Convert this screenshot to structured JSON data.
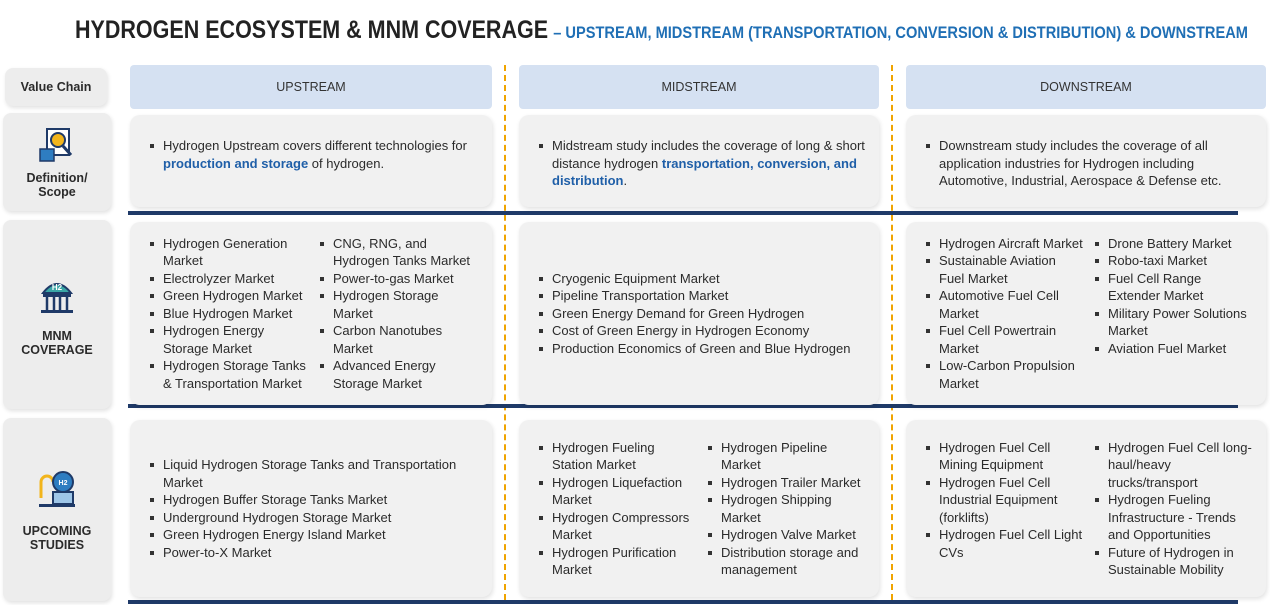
{
  "header": {
    "title": "HYDROGEN ECOSYSTEM & MNM COVERAGE",
    "subtitle": "– UPSTREAM, MIDSTREAM  (TRANSPORTATION, CONVERSION & DISTRIBUTION) & DOWNSTREAM"
  },
  "value_chain_label": "Value Chain",
  "columns": [
    "UPSTREAM",
    "MIDSTREAM",
    "DOWNSTREAM"
  ],
  "rows": [
    {
      "label": [
        "Definition/",
        "Scope"
      ],
      "cells": [
        {
          "parts": [
            "Hydrogen Upstream covers different technologies for ",
            "production and storage",
            " of hydrogen."
          ]
        },
        {
          "parts": [
            "Midstream study includes the coverage of long & short distance hydrogen ",
            "transportation, conversion, and distribution",
            "."
          ]
        },
        {
          "parts": [
            "Downstream study includes the coverage of all application industries for Hydrogen including Automotive, Industrial, Aerospace & Defense etc."
          ]
        }
      ]
    },
    {
      "label": [
        "MNM",
        "COVERAGE"
      ],
      "cells": [
        {
          "items": [
            "Hydrogen Generation Market",
            "Electrolyzer Market",
            "Green Hydrogen Market",
            "Blue Hydrogen Market",
            "Hydrogen Energy Storage Market",
            "Hydrogen Storage Tanks & Transportation Market",
            "CNG, RNG, and Hydrogen Tanks Market",
            "Power-to-gas Market",
            "Hydrogen Storage Market",
            "Carbon Nanotubes Market",
            "Advanced Energy Storage Market"
          ]
        },
        {
          "items": [
            "Cryogenic Equipment Market",
            "Pipeline Transportation Market",
            "Green Energy Demand for Green Hydrogen",
            "Cost of Green Energy in Hydrogen Economy",
            "Production Economics of Green and Blue Hydrogen"
          ]
        },
        {
          "items": [
            "Hydrogen Aircraft Market",
            "Sustainable Aviation Fuel Market",
            "Automotive Fuel Cell Market",
            "Fuel Cell Powertrain Market",
            "Low-Carbon Propulsion Market",
            "Drone Battery Market",
            "Robo-taxi Market",
            "Fuel Cell Range Extender Market",
            "Military Power Solutions Market",
            "Aviation Fuel Market"
          ]
        }
      ]
    },
    {
      "label": [
        "UPCOMING",
        "STUDIES"
      ],
      "cells": [
        {
          "items": [
            "Liquid Hydrogen Storage Tanks and Transportation Market",
            "Hydrogen Buffer Storage Tanks Market",
            "Underground Hydrogen Storage Market",
            "Green Hydrogen Energy Island Market",
            "Power-to-X Market"
          ]
        },
        {
          "items": [
            "Hydrogen Fueling Station Market",
            "Hydrogen Liquefaction Market",
            "Hydrogen Compressors Market",
            "Hydrogen Purification Market",
            "Hydrogen Pipeline Market",
            "Hydrogen Trailer Market",
            "Hydrogen Shipping Market",
            "Hydrogen Valve Market",
            "Distribution storage and management"
          ]
        },
        {
          "items": [
            "Hydrogen Fuel Cell Mining Equipment",
            "Hydrogen Fuel Cell Industrial Equipment (forklifts)",
            "Hydrogen Fuel Cell Light CVs",
            "Hydrogen Fuel Cell long-haul/heavy trucks/transport",
            "Hydrogen Fueling Infrastructure - Trends and Opportunities",
            "Future of Hydrogen in Sustainable Mobility"
          ]
        }
      ]
    }
  ]
}
